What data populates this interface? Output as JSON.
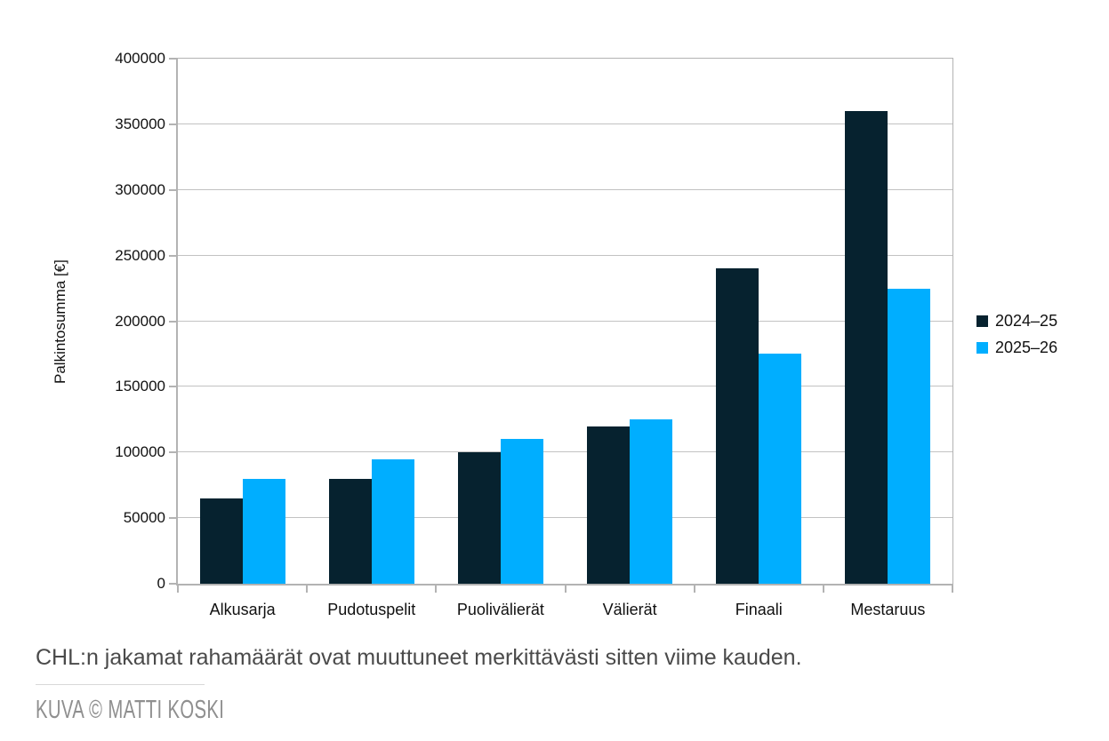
{
  "chart_data": {
    "type": "bar",
    "title": "",
    "categories": [
      "Alkusarja",
      "Pudotuspelit",
      "Puolivälierät",
      "Välierät",
      "Finaali",
      "Mestaruus"
    ],
    "series": [
      {
        "name": "2024–25",
        "color": "#06222f",
        "values": [
          65000,
          80000,
          100000,
          120000,
          240000,
          360000
        ]
      },
      {
        "name": "2025–26",
        "color": "#00aeff",
        "values": [
          80000,
          95000,
          110000,
          125000,
          175000,
          225000
        ]
      }
    ],
    "xlabel": "",
    "ylabel": "Palkintosumma [€]",
    "ylim": [
      0,
      400000
    ],
    "yticks": [
      0,
      50000,
      100000,
      150000,
      200000,
      250000,
      300000,
      350000,
      400000
    ],
    "grid": true,
    "legend_position": "right-middle"
  },
  "caption": {
    "text": "CHL:n jakamat rahamäärät ovat muuttuneet merkittävästi sitten viime kauden."
  },
  "credit": {
    "text": "KUVA © MATTI KOSKI"
  },
  "colors": {
    "series_2024_25": "#06222f",
    "series_2025_26": "#00aeff",
    "grid": "#c2c2c2",
    "axis": "#b3b3b3",
    "tick_label": "#111111",
    "caption_text": "#4a4a4a",
    "credit_text": "#8f8f8f",
    "divider": "#d8d8d8",
    "background": "#ffffff"
  }
}
